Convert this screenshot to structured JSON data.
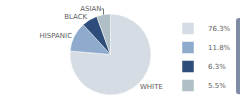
{
  "chart_data": {
    "type": "pie",
    "categories": [
      "WHITE",
      "HISPANIC",
      "BLACK",
      "ASIAN"
    ],
    "values": [
      76.3,
      11.8,
      6.3,
      5.5
    ],
    "value_labels": [
      "76.3%",
      "11.8%",
      "6.3%",
      "5.5%"
    ],
    "colors": [
      "#d6dce4",
      "#8eaacc",
      "#2e4d7b",
      "#b0bec5"
    ],
    "legend": "right"
  }
}
